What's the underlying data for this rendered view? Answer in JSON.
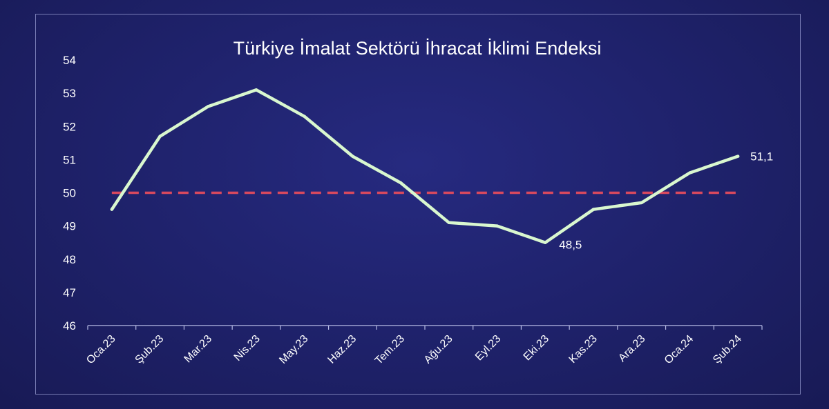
{
  "colors": {
    "background": "#1e2169",
    "line": "#d9f7cf",
    "reference_line": "#d9495e",
    "axis": "#b9bde6",
    "text": "#ffffff"
  },
  "chart_data": {
    "type": "line",
    "title": "Türkiye İmalat Sektörü İhracat İklimi Endeksi",
    "categories": [
      "Oca.23",
      "Şub.23",
      "Mar.23",
      "Nis.23",
      "May.23",
      "Haz.23",
      "Tem.23",
      "Ağu.23",
      "Eyl.23",
      "Eki.23",
      "Kas.23",
      "Ara.23",
      "Oca.24",
      "Şub.24"
    ],
    "series": [
      {
        "values": [
          49.5,
          51.7,
          52.6,
          53.1,
          52.3,
          51.1,
          50.3,
          49.1,
          49.0,
          48.5,
          49.5,
          49.7,
          50.6,
          51.1
        ]
      }
    ],
    "reference_line": {
      "value": 50,
      "style": "dashed"
    },
    "data_labels": [
      {
        "index": 9,
        "text": "48,5"
      },
      {
        "index": 13,
        "text": "51,1"
      }
    ],
    "yticks": [
      "46",
      "47",
      "48",
      "49",
      "50",
      "51",
      "52",
      "53",
      "54"
    ],
    "ylim": [
      46,
      54
    ],
    "grid": false,
    "legend": "none"
  }
}
